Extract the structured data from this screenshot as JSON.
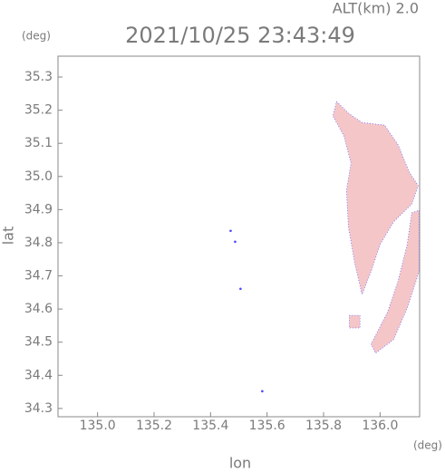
{
  "chart_data": {
    "type": "map",
    "title": "2021/10/25 23:43:49",
    "subtitle": "ALT(km)  2.0",
    "y_unit": "(deg)",
    "x_unit": "(deg)",
    "xlabel": "lon",
    "ylabel": "lat",
    "xlim": [
      134.86,
      136.14
    ],
    "ylim": [
      34.275,
      35.363
    ],
    "xticks": [
      {
        "value": 135,
        "label": "135.0"
      },
      135.2,
      135.4,
      135.6,
      135.8,
      {
        "value": 136,
        "label": "136.0"
      }
    ],
    "yticks": [
      34.3,
      34.4,
      34.5,
      34.6,
      34.7,
      34.8,
      34.9,
      {
        "value": 35,
        "label": "35.0"
      },
      35.1,
      35.2,
      35.3
    ],
    "fill_color": "#f5c6c8",
    "edge_color": "#6a6aff",
    "regions": [
      {
        "lon": [
          135.846,
          135.888,
          135.936,
          136.016,
          136.064,
          136.103,
          136.135,
          136.112,
          136.048,
          136.0,
          135.968,
          135.936,
          135.91,
          135.888,
          135.881,
          135.897,
          135.872,
          135.833
        ],
        "lat": [
          35.226,
          35.191,
          35.163,
          35.155,
          35.095,
          35.013,
          34.972,
          34.917,
          34.863,
          34.795,
          34.713,
          34.644,
          34.74,
          34.849,
          34.958,
          35.04,
          35.122,
          35.183
        ]
      },
      {
        "lon": [
          136.112,
          136.138,
          136.138,
          136.096,
          136.048,
          135.984,
          135.968,
          136.026,
          136.064,
          136.096
        ],
        "lat": [
          34.89,
          34.898,
          34.713,
          34.603,
          34.508,
          34.467,
          34.494,
          34.59,
          34.685,
          34.795
        ]
      },
      {
        "lon": [
          135.891,
          135.929,
          135.929,
          135.891
        ],
        "lat": [
          34.581,
          34.581,
          34.543,
          34.543
        ]
      }
    ],
    "points": {
      "color": "#4a4aff",
      "lon": [
        135.471,
        135.487,
        135.506,
        135.583
      ],
      "lat": [
        34.836,
        34.803,
        34.661,
        34.352
      ]
    }
  }
}
